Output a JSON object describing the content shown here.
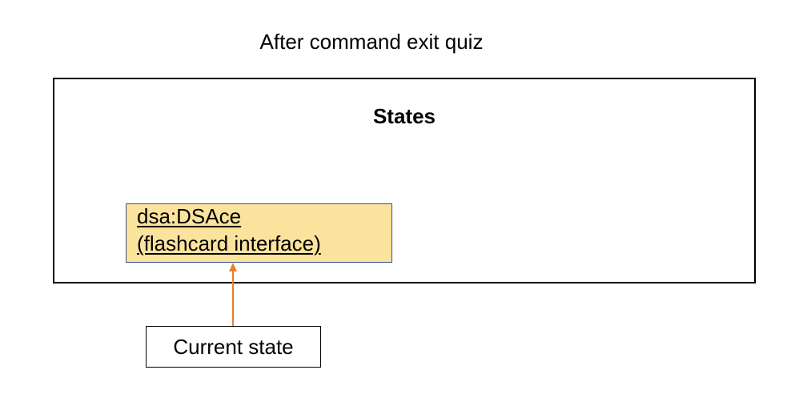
{
  "diagram": {
    "title": "After command exit quiz",
    "states_box": {
      "title": "States"
    },
    "current_object": {
      "name": "dsa:DSAce",
      "description": "(flashcard interface)",
      "fill_color": "#fbe39d",
      "border_color": "#2f528f"
    },
    "pointer": {
      "label": "Current state",
      "arrow_color": "#ed7d31"
    }
  }
}
